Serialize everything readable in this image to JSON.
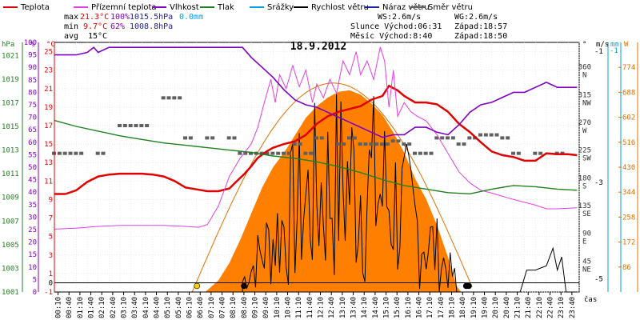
{
  "chart_data": {
    "type": "line",
    "title": "18.9.2012",
    "legend": [
      {
        "label": "Teplota",
        "color": "#e00000"
      },
      {
        "label": "Přízemní teplota",
        "color": "#e040e0"
      },
      {
        "label": "Vlhkost",
        "color": "#8000c0"
      },
      {
        "label": "Tlak",
        "color": "#208020"
      },
      {
        "label": "Srážky",
        "color": "#00a0e0"
      },
      {
        "label": "Rychlost větru",
        "color": "#000000"
      },
      {
        "label": "Náraz větru",
        "color": "#2020a0"
      },
      {
        "label": "Směr větru",
        "color": "#606060"
      }
    ],
    "stats": {
      "max_label": "max",
      "max_temp": "21.3°C",
      "max_hum": "100%",
      "max_press": "1015.5hPa",
      "max_rain": "0.0mm",
      "min_label": "min",
      "min_temp": "9.7°C",
      "min_hum": "62%",
      "min_press": "1008.8hPa",
      "avg_label": "avg",
      "avg_temp": "15°C"
    },
    "info": {
      "ws": "WS:2.6m/s",
      "wg": "WG:2.6m/s",
      "sun_rise": "Slunce Východ:06:31",
      "sun_set": "Západ:18:57",
      "moon_rise": "Měsíc  Východ:8:40",
      "moon_set": "Západ:18:50"
    },
    "axis_units": {
      "hpa": "hPa",
      "pct": "%",
      "degc": "°C",
      "deg": "°",
      "ms": "m/s",
      "mm": "mm",
      "w": "W",
      "cas": "čas"
    },
    "left_axes": {
      "hpa_ticks": [
        "1001",
        "1003",
        "1005",
        "1007",
        "1009",
        "1011",
        "1013",
        "1015",
        "1017",
        "1019",
        "1021"
      ],
      "pct_ticks": [
        "0",
        "5",
        "10",
        "15",
        "20",
        "25",
        "30",
        "35",
        "40",
        "45",
        "50",
        "55",
        "60",
        "65",
        "70",
        "75",
        "80",
        "85",
        "90",
        "95",
        "100"
      ],
      "degc_ticks": [
        "-1",
        "1",
        "3",
        "5",
        "7",
        "9",
        "11",
        "13",
        "15",
        "17",
        "19",
        "21",
        "23",
        "25"
      ],
      "zero_label": "0"
    },
    "right_axes": {
      "dir_ticks": [
        {
          "v": "45",
          "d": "NE"
        },
        {
          "v": "90",
          "d": "E"
        },
        {
          "v": "135",
          "d": "SE"
        },
        {
          "v": "180",
          "d": "S"
        },
        {
          "v": "225",
          "d": "SW"
        },
        {
          "v": "270",
          "d": "W"
        },
        {
          "v": "315",
          "d": "NW"
        },
        {
          "v": "360",
          "d": "N"
        }
      ],
      "ms_ticks": [
        "-1",
        "-3",
        "-5"
      ],
      "mm_ticks": [
        "-1"
      ],
      "w_ticks": [
        "86",
        "172",
        "258",
        "344",
        "430",
        "516",
        "602",
        "688",
        "774"
      ]
    },
    "x_ticks": [
      "00:10",
      "00:40",
      "01:10",
      "01:40",
      "02:10",
      "02:40",
      "03:10",
      "03:40",
      "04:10",
      "04:40",
      "05:10",
      "05:40",
      "06:10",
      "06:40",
      "07:10",
      "07:40",
      "08:10",
      "08:40",
      "09:10",
      "09:40",
      "10:10",
      "10:40",
      "11:10",
      "11:40",
      "12:10",
      "12:40",
      "13:10",
      "13:40",
      "14:10",
      "14:40",
      "15:10",
      "15:40",
      "16:10",
      "16:40",
      "17:10",
      "17:40",
      "18:10",
      "18:40",
      "19:10",
      "19:40",
      "20:10",
      "20:40",
      "21:10",
      "21:40",
      "22:10",
      "22:40",
      "23:10",
      "23:40"
    ],
    "scales": {
      "x_hours": [
        0,
        24
      ],
      "temp_c": [
        -1,
        26
      ],
      "humidity_pct": [
        0,
        100
      ],
      "pressure_hpa": [
        1001,
        1022.1
      ],
      "wind_ms": [
        0,
        5.7
      ],
      "radiation_w": [
        0,
        860
      ]
    },
    "series": [
      {
        "name": "Teplota",
        "color": "#e00000",
        "points": [
          [
            0,
            9.6
          ],
          [
            0.5,
            9.6
          ],
          [
            1,
            10
          ],
          [
            1.5,
            10.9
          ],
          [
            2,
            11.5
          ],
          [
            2.5,
            11.7
          ],
          [
            3,
            11.8
          ],
          [
            3.5,
            11.8
          ],
          [
            4,
            11.8
          ],
          [
            4.5,
            11.7
          ],
          [
            5,
            11.5
          ],
          [
            5.5,
            11
          ],
          [
            6,
            10.3
          ],
          [
            6.5,
            10.1
          ],
          [
            7,
            9.9
          ],
          [
            7.5,
            9.9
          ],
          [
            8,
            10.2
          ],
          [
            8.3,
            10.9
          ],
          [
            8.7,
            11.8
          ],
          [
            9,
            12.6
          ],
          [
            9.3,
            13.5
          ],
          [
            9.7,
            14.2
          ],
          [
            10,
            14.6
          ],
          [
            10.5,
            15
          ],
          [
            11,
            15.3
          ],
          [
            11.5,
            16
          ],
          [
            12,
            17.2
          ],
          [
            12.5,
            18
          ],
          [
            13,
            18.5
          ],
          [
            13.5,
            18.8
          ],
          [
            14,
            19.1
          ],
          [
            14.5,
            19.8
          ],
          [
            15,
            20.2
          ],
          [
            15.3,
            21.3
          ],
          [
            15.7,
            20.8
          ],
          [
            16,
            20.2
          ],
          [
            16.5,
            19.5
          ],
          [
            17,
            19.5
          ],
          [
            17.5,
            19.3
          ],
          [
            18,
            18.5
          ],
          [
            18.5,
            17.2
          ],
          [
            19,
            16.3
          ],
          [
            19.5,
            15.2
          ],
          [
            20,
            14.2
          ],
          [
            20.5,
            13.8
          ],
          [
            21,
            13.6
          ],
          [
            21.5,
            13.2
          ],
          [
            22,
            13.2
          ],
          [
            22.5,
            14
          ],
          [
            23,
            13.9
          ],
          [
            23.5,
            13.9
          ],
          [
            23.9,
            13.8
          ]
        ]
      },
      {
        "name": "Přízemní teplota",
        "color": "#e040e0",
        "points": [
          [
            0,
            5.8
          ],
          [
            1,
            5.9
          ],
          [
            2,
            6.1
          ],
          [
            3,
            6.2
          ],
          [
            4,
            6.2
          ],
          [
            5,
            6.2
          ],
          [
            6,
            6.1
          ],
          [
            6.6,
            6
          ],
          [
            7,
            6.3
          ],
          [
            7.5,
            8.3
          ],
          [
            8,
            11.5
          ],
          [
            8.5,
            13.5
          ],
          [
            9,
            15
          ],
          [
            9.3,
            16.8
          ],
          [
            9.6,
            19.5
          ],
          [
            9.9,
            22
          ],
          [
            10.1,
            19.5
          ],
          [
            10.3,
            22.5
          ],
          [
            10.6,
            21
          ],
          [
            10.9,
            23.5
          ],
          [
            11.2,
            21.2
          ],
          [
            11.5,
            23
          ],
          [
            11.8,
            19.5
          ],
          [
            12,
            21.5
          ],
          [
            12.3,
            20
          ],
          [
            12.6,
            22
          ],
          [
            12.9,
            20.5
          ],
          [
            13.2,
            24
          ],
          [
            13.5,
            22.5
          ],
          [
            13.8,
            25
          ],
          [
            14,
            22.5
          ],
          [
            14.3,
            24
          ],
          [
            14.6,
            22
          ],
          [
            14.9,
            25.5
          ],
          [
            15.1,
            24
          ],
          [
            15.3,
            19
          ],
          [
            15.5,
            23
          ],
          [
            15.7,
            18
          ],
          [
            16,
            19.5
          ],
          [
            16.3,
            18.5
          ],
          [
            16.6,
            18
          ],
          [
            17,
            17.5
          ],
          [
            17.5,
            16
          ],
          [
            18,
            14
          ],
          [
            18.5,
            12
          ],
          [
            19,
            10.8
          ],
          [
            19.5,
            10
          ],
          [
            20,
            9.7
          ],
          [
            21,
            9
          ],
          [
            22,
            8.4
          ],
          [
            22.5,
            8
          ],
          [
            23,
            8
          ],
          [
            23.9,
            8.1
          ]
        ]
      },
      {
        "name": "Vlhkost",
        "color": "#8000c0",
        "points": [
          [
            0,
            95
          ],
          [
            1,
            95
          ],
          [
            1.5,
            96
          ],
          [
            1.8,
            98
          ],
          [
            2,
            96
          ],
          [
            2.5,
            98
          ],
          [
            3,
            98
          ],
          [
            4,
            98
          ],
          [
            5,
            98
          ],
          [
            6,
            98
          ],
          [
            7,
            98
          ],
          [
            8,
            98
          ],
          [
            8.6,
            98
          ],
          [
            9,
            94
          ],
          [
            9.5,
            90
          ],
          [
            10,
            86
          ],
          [
            10.5,
            81
          ],
          [
            11,
            77
          ],
          [
            11.5,
            75
          ],
          [
            12,
            74
          ],
          [
            12.5,
            72
          ],
          [
            13,
            70
          ],
          [
            13.5,
            68
          ],
          [
            14,
            66
          ],
          [
            14.5,
            64
          ],
          [
            15,
            62
          ],
          [
            15.5,
            63
          ],
          [
            16,
            63
          ],
          [
            16.5,
            66
          ],
          [
            17,
            66
          ],
          [
            17.5,
            64
          ],
          [
            18,
            63
          ],
          [
            18.5,
            67
          ],
          [
            19,
            72
          ],
          [
            19.5,
            75
          ],
          [
            20,
            76
          ],
          [
            20.5,
            78
          ],
          [
            21,
            80
          ],
          [
            21.5,
            80
          ],
          [
            22,
            82
          ],
          [
            22.5,
            84
          ],
          [
            23,
            82
          ],
          [
            23.9,
            82
          ]
        ]
      },
      {
        "name": "Tlak",
        "color": "#208020",
        "points": [
          [
            0,
            1015.5
          ],
          [
            1,
            1015
          ],
          [
            2,
            1014.6
          ],
          [
            3,
            1014.2
          ],
          [
            4,
            1013.9
          ],
          [
            5,
            1013.6
          ],
          [
            6,
            1013.4
          ],
          [
            7,
            1013.2
          ],
          [
            8,
            1013
          ],
          [
            9,
            1012.8
          ],
          [
            10,
            1012.5
          ],
          [
            11,
            1012.3
          ],
          [
            12,
            1012
          ],
          [
            13,
            1011.6
          ],
          [
            14,
            1011.1
          ],
          [
            15,
            1010.5
          ],
          [
            16,
            1010
          ],
          [
            17,
            1009.7
          ],
          [
            18,
            1009.4
          ],
          [
            19,
            1009.3
          ],
          [
            20,
            1009.7
          ],
          [
            21,
            1010
          ],
          [
            22,
            1009.9
          ],
          [
            23,
            1009.7
          ],
          [
            23.9,
            1009.6
          ]
        ]
      },
      {
        "name": "Rychlost větru",
        "color": "#000000",
        "points": [
          [
            0,
            0
          ],
          [
            21.3,
            0
          ],
          [
            21.6,
            0.5
          ],
          [
            22,
            0.5
          ],
          [
            22.5,
            0.6
          ],
          [
            22.8,
            1
          ],
          [
            23,
            0.5
          ],
          [
            23.2,
            0.8
          ],
          [
            23.4,
            0
          ],
          [
            23.9,
            0
          ]
        ]
      }
    ],
    "radiation": {
      "name": "Sluneční záření",
      "color": "#ff8000",
      "points": [
        [
          6.9,
          0
        ],
        [
          7.5,
          40
        ],
        [
          8,
          100
        ],
        [
          8.5,
          180
        ],
        [
          9,
          270
        ],
        [
          9.5,
          360
        ],
        [
          10,
          430
        ],
        [
          10.5,
          480
        ],
        [
          11,
          540
        ],
        [
          11.5,
          600
        ],
        [
          12,
          640
        ],
        [
          12.5,
          670
        ],
        [
          13,
          690
        ],
        [
          13.5,
          695
        ],
        [
          14,
          680
        ],
        [
          14.5,
          650
        ],
        [
          15,
          610
        ],
        [
          15.5,
          550
        ],
        [
          16,
          480
        ],
        [
          16.5,
          390
        ],
        [
          17,
          320
        ],
        [
          17.5,
          230
        ],
        [
          18,
          120
        ],
        [
          18.4,
          20
        ],
        [
          18.6,
          0
        ]
      ]
    },
    "wind_dir_deg": [
      [
        0,
        225
      ],
      [
        0.5,
        225
      ],
      [
        1,
        225
      ],
      [
        2,
        225
      ],
      [
        3,
        270
      ],
      [
        3.5,
        270
      ],
      [
        4,
        270
      ],
      [
        5,
        315
      ],
      [
        5.5,
        315
      ],
      [
        6,
        250
      ],
      [
        7,
        250
      ],
      [
        8,
        250
      ],
      [
        8.5,
        225
      ],
      [
        9,
        225
      ],
      [
        9.5,
        225
      ],
      [
        10,
        225
      ],
      [
        10.5,
        225
      ],
      [
        11,
        240
      ],
      [
        11.5,
        225
      ],
      [
        12,
        250
      ],
      [
        13,
        240
      ],
      [
        13.5,
        250
      ],
      [
        14,
        240
      ],
      [
        14.5,
        240
      ],
      [
        15,
        240
      ],
      [
        15.5,
        245
      ],
      [
        16,
        240
      ],
      [
        16.5,
        225
      ],
      [
        17,
        225
      ],
      [
        17.5,
        250
      ],
      [
        18,
        250
      ],
      [
        18.5,
        240
      ],
      [
        19,
        250
      ],
      [
        19.5,
        255
      ],
      [
        20,
        255
      ],
      [
        20.5,
        250
      ],
      [
        21,
        225
      ],
      [
        22,
        225
      ],
      [
        23,
        225
      ]
    ],
    "markers": [
      {
        "label": "sunrise",
        "x": 6.52,
        "color": "#f0d000"
      },
      {
        "label": "moonrise",
        "x": 8.67,
        "color": "#000000"
      },
      {
        "label": "sunset",
        "x": 18.95,
        "color": "#000000"
      },
      {
        "label": "moonset",
        "x": 18.83,
        "color": "#000000"
      }
    ]
  }
}
